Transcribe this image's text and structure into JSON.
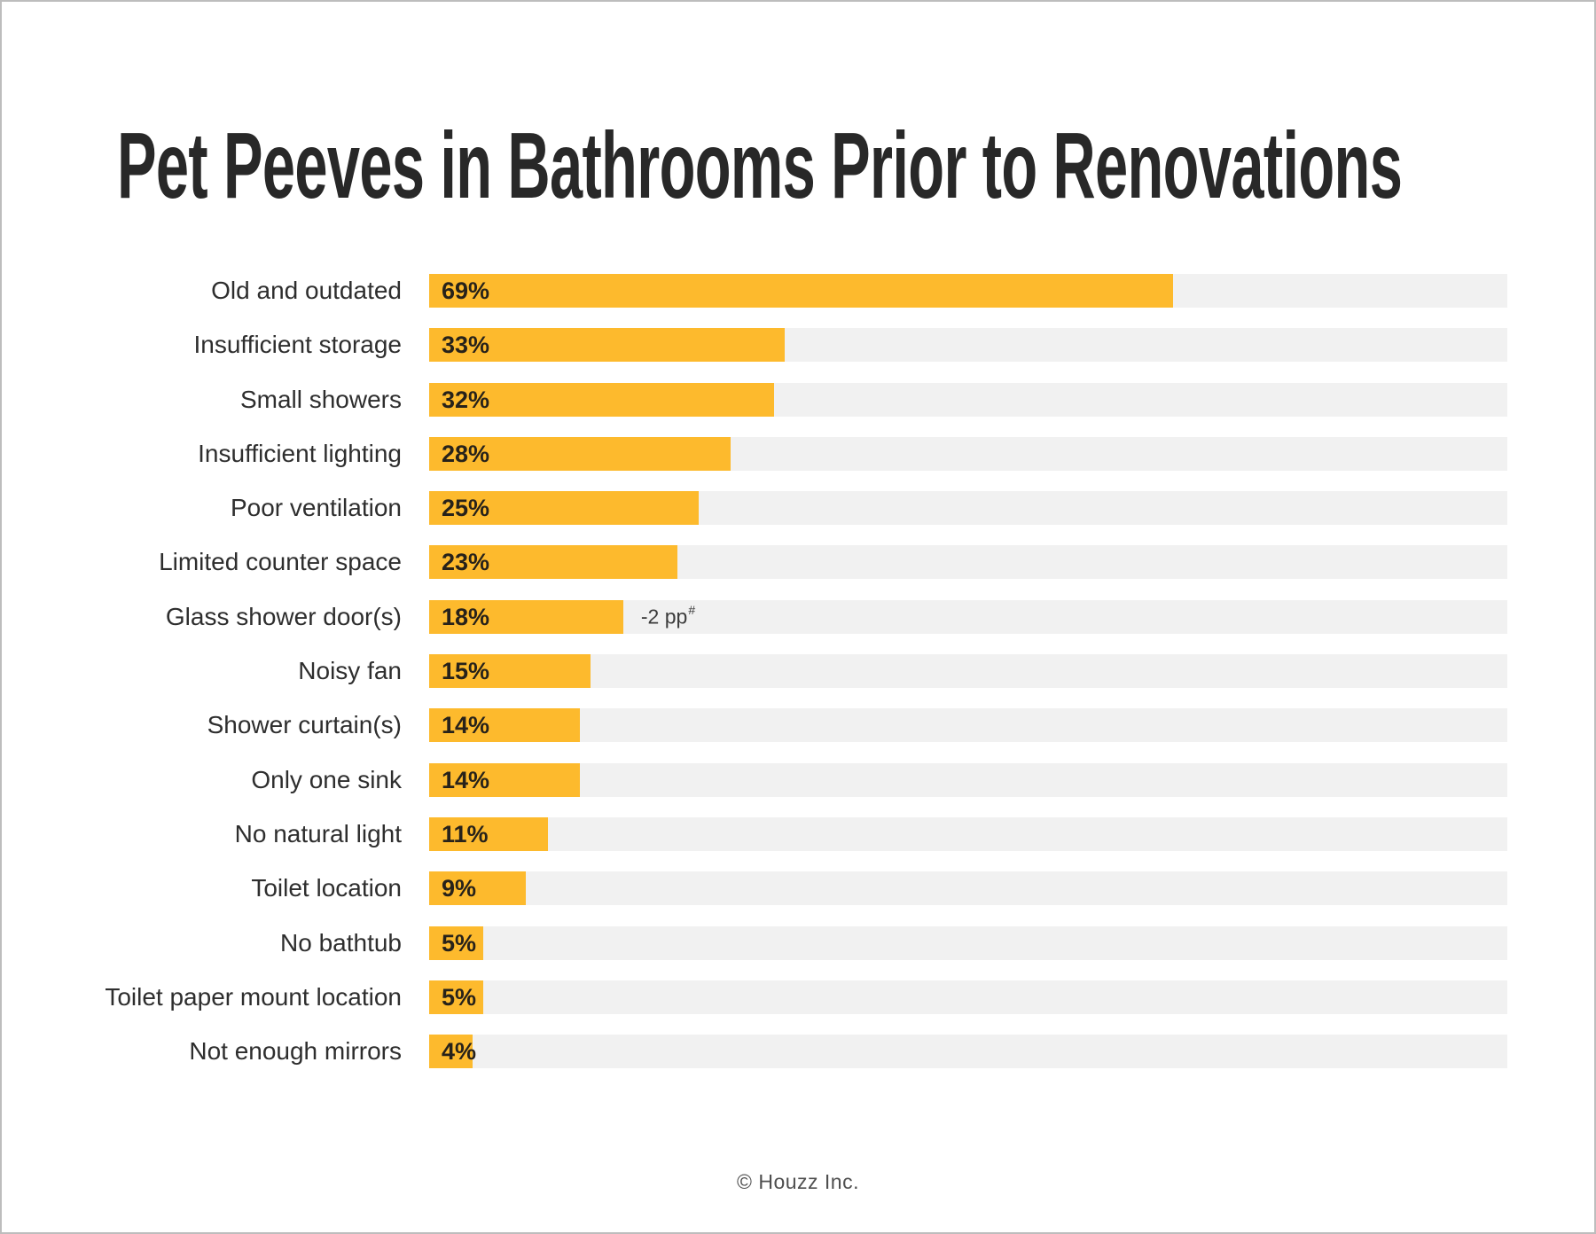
{
  "page": {
    "title": "Pet Peeves in Bathrooms Prior to Renovations",
    "footer": "© Houzz Inc."
  },
  "chart_data": {
    "type": "bar",
    "orientation": "horizontal",
    "title": "Pet Peeves in Bathrooms Prior to Renovations",
    "categories": [
      "Old and outdated",
      "Insufficient storage",
      "Small showers",
      "Insufficient lighting",
      "Poor ventilation",
      "Limited counter space",
      "Glass shower door(s)",
      "Noisy fan",
      "Shower curtain(s)",
      "Only one sink",
      "No natural light",
      "Toilet location",
      "No bathtub",
      "Toilet paper mount location",
      "Not enough mirrors"
    ],
    "values": [
      69,
      33,
      32,
      28,
      25,
      23,
      18,
      15,
      14,
      14,
      11,
      9,
      5,
      5,
      4
    ],
    "value_suffix": "%",
    "xlim": [
      0,
      100
    ],
    "grid": false,
    "legend": false,
    "value_labels_inside_bar": true,
    "annotations": [
      {
        "category": "Glass shower door(s)",
        "text": "-2 pp",
        "superscript": "#"
      }
    ],
    "colors": {
      "bar": "#FDBA2D",
      "track": "#F1F1F1",
      "value_text": "#27221A",
      "label_text": "#2E2E2E",
      "title_text": "#282828",
      "footer_text": "#4F4F4F"
    }
  }
}
